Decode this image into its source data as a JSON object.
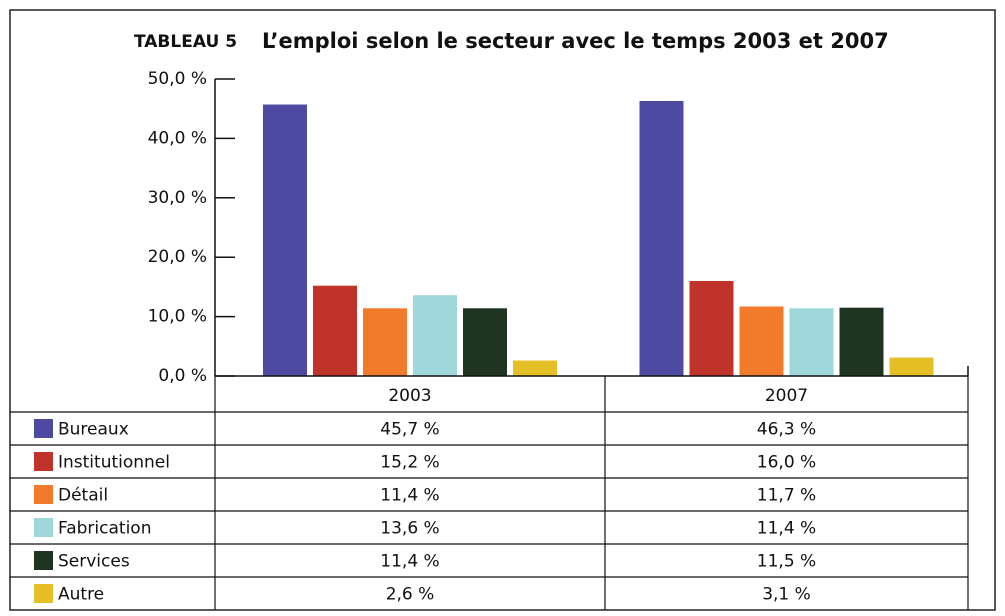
{
  "chart_data": {
    "type": "bar",
    "title_label": "TABLEAU 5",
    "title": "L’emploi selon le secteur avec le temps 2003 et 2007",
    "categories": [
      "2003",
      "2007"
    ],
    "series": [
      {
        "name": "Bureaux",
        "color": "#4e4aa1",
        "values": [
          45.7,
          46.3
        ],
        "value_labels": [
          "45,7 %",
          "46,3 %"
        ]
      },
      {
        "name": "Institutionnel",
        "color": "#c0332a",
        "values": [
          15.2,
          16.0
        ],
        "value_labels": [
          "15,2 %",
          "16,0 %"
        ]
      },
      {
        "name": "Détail",
        "color": "#f17a2b",
        "values": [
          11.4,
          11.7
        ],
        "value_labels": [
          "11,4 %",
          "11,7 %"
        ]
      },
      {
        "name": "Fabrication",
        "color": "#9fd7db",
        "values": [
          13.6,
          11.4
        ],
        "value_labels": [
          "13,6 %",
          "11,4 %"
        ]
      },
      {
        "name": "Services",
        "color": "#1f3522",
        "values": [
          11.4,
          11.5
        ],
        "value_labels": [
          "11,4 %",
          "11,5 %"
        ]
      },
      {
        "name": "Autre",
        "color": "#e4bf26",
        "values": [
          2.6,
          3.1
        ],
        "value_labels": [
          "2,6 %",
          "3,1 %"
        ]
      }
    ],
    "ylim": [
      0,
      50
    ],
    "yticks": [
      {
        "value": 0,
        "label": "0,0 %"
      },
      {
        "value": 10,
        "label": "10,0 %"
      },
      {
        "value": 20,
        "label": "20,0 %"
      },
      {
        "value": 30,
        "label": "30,0 %"
      },
      {
        "value": 40,
        "label": "40,0 %"
      },
      {
        "value": 50,
        "label": "50,0 %"
      }
    ]
  }
}
